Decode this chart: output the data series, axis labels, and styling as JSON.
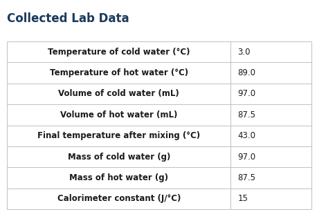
{
  "title": "Collected Lab Data",
  "title_color": "#1a3a5c",
  "title_fontsize": 12,
  "title_fontweight": "bold",
  "rows": [
    [
      "Temperature of cold water (°C)",
      "3.0"
    ],
    [
      "Temperature of hot water (°C)",
      "89.0"
    ],
    [
      "Volume of cold water (mL)",
      "97.0"
    ],
    [
      "Volume of hot water (mL)",
      "87.5"
    ],
    [
      "Final temperature after mixing (°C)",
      "43.0"
    ],
    [
      "Mass of cold water (g)",
      "97.0"
    ],
    [
      "Mass of hot water (g)",
      "87.5"
    ],
    [
      "Calorimeter constant (J/°C)",
      "15"
    ]
  ],
  "label_fontsize": 8.5,
  "value_fontsize": 8.5,
  "label_fontweight": "bold",
  "value_fontweight": "normal",
  "text_color": "#1a1a1a",
  "bg_color": "#ffffff",
  "border_color": "#c0c0c0",
  "fig_width": 4.58,
  "fig_height": 3.07,
  "dpi": 100
}
